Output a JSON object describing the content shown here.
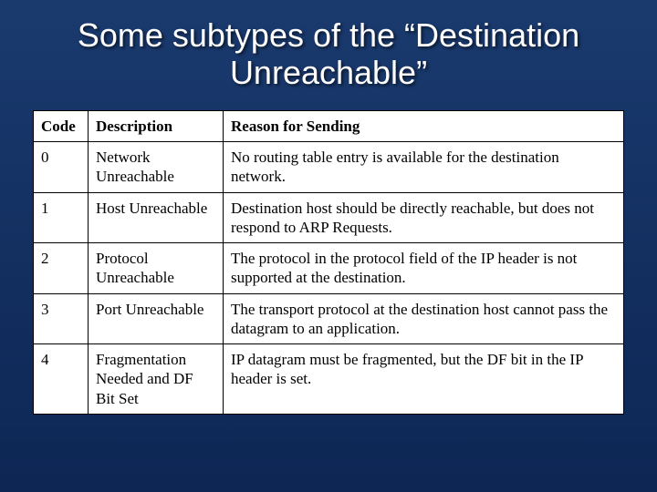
{
  "title": "Some subtypes of the “Destination Unreachable”",
  "table": {
    "columns": [
      "Code",
      "Description",
      "Reason for Sending"
    ],
    "rows": [
      {
        "code": "0",
        "desc": "Network Unreachable",
        "reason": "No routing table entry is available for the destination network."
      },
      {
        "code": "1",
        "desc": "Host Unreachable",
        "reason": "Destination host should be directly reachable, but does not respond to ARP Requests."
      },
      {
        "code": "2",
        "desc": "Protocol Unreachable",
        "reason": "The protocol in the protocol field of the IP header is not supported at the destination."
      },
      {
        "code": "3",
        "desc": "Port Unreachable",
        "reason": "The transport protocol at the destination host cannot  pass the datagram to an application."
      },
      {
        "code": "4",
        "desc": "Fragmentation Needed\nand DF Bit Set",
        "reason": "IP datagram must be fragmented, but the DF bit in the IP header is set."
      }
    ]
  },
  "styling": {
    "slide_bg_top": "#1a3a6e",
    "slide_bg_bottom": "#0d2654",
    "title_color": "#ffffff",
    "title_fontsize": 36,
    "table_bg": "#ffffff",
    "table_border_color": "#000000",
    "table_text_color": "#000000",
    "table_fontsize": 17,
    "table_font": "Times New Roman",
    "col_widths": [
      "60px",
      "148px",
      "auto"
    ]
  }
}
